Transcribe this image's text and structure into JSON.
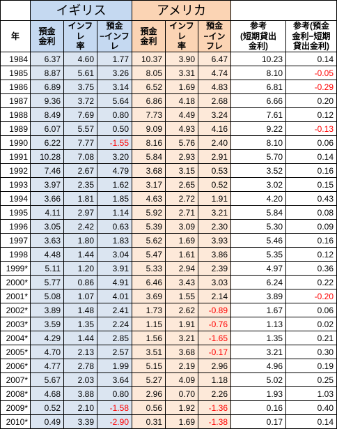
{
  "headers": {
    "uk": "イギリス",
    "us": "アメリカ",
    "year": "年",
    "deposit": "預金\n金利",
    "inflation": "インフレ\n率",
    "diff": "預金\n−インフレ",
    "ref1": "参考\n(短期貸出\n金利)",
    "ref2": "参考(預金\n金利−短期\n貸出金利)"
  },
  "rows": [
    {
      "year": "1984",
      "uk_dep": "6.37",
      "uk_inf": "4.60",
      "uk_diff": "1.77",
      "us_dep": "10.37",
      "us_inf": "3.90",
      "us_diff": "6.47",
      "ref1": "10.23",
      "ref2": "0.14"
    },
    {
      "year": "1985",
      "uk_dep": "8.87",
      "uk_inf": "5.61",
      "uk_diff": "3.26",
      "us_dep": "8.05",
      "us_inf": "3.31",
      "us_diff": "4.74",
      "ref1": "8.10",
      "ref2": "-0.05"
    },
    {
      "year": "1986",
      "uk_dep": "6.89",
      "uk_inf": "3.75",
      "uk_diff": "3.14",
      "us_dep": "6.52",
      "us_inf": "1.69",
      "us_diff": "4.83",
      "ref1": "6.81",
      "ref2": "-0.29"
    },
    {
      "year": "1987",
      "uk_dep": "9.36",
      "uk_inf": "3.72",
      "uk_diff": "5.64",
      "us_dep": "6.86",
      "us_inf": "4.18",
      "us_diff": "2.68",
      "ref1": "6.66",
      "ref2": "0.20"
    },
    {
      "year": "1988",
      "uk_dep": "8.49",
      "uk_inf": "7.69",
      "uk_diff": "0.80",
      "us_dep": "7.73",
      "us_inf": "4.49",
      "us_diff": "3.24",
      "ref1": "7.61",
      "ref2": "0.12"
    },
    {
      "year": "1989",
      "uk_dep": "6.07",
      "uk_inf": "5.57",
      "uk_diff": "0.50",
      "us_dep": "9.09",
      "us_inf": "4.93",
      "us_diff": "4.16",
      "ref1": "9.22",
      "ref2": "-0.13"
    },
    {
      "year": "1990",
      "uk_dep": "6.22",
      "uk_inf": "7.77",
      "uk_diff": "-1.55",
      "us_dep": "8.16",
      "us_inf": "5.76",
      "us_diff": "2.40",
      "ref1": "8.10",
      "ref2": "0.06"
    },
    {
      "year": "1991",
      "uk_dep": "10.28",
      "uk_inf": "7.08",
      "uk_diff": "3.20",
      "us_dep": "5.84",
      "us_inf": "2.93",
      "us_diff": "2.91",
      "ref1": "5.70",
      "ref2": "0.14"
    },
    {
      "year": "1992",
      "uk_dep": "7.46",
      "uk_inf": "2.67",
      "uk_diff": "4.79",
      "us_dep": "3.68",
      "us_inf": "3.15",
      "us_diff": "0.53",
      "ref1": "3.52",
      "ref2": "0.16"
    },
    {
      "year": "1993",
      "uk_dep": "3.97",
      "uk_inf": "2.35",
      "uk_diff": "1.62",
      "us_dep": "3.17",
      "us_inf": "2.65",
      "us_diff": "0.52",
      "ref1": "3.02",
      "ref2": "0.15"
    },
    {
      "year": "1994",
      "uk_dep": "3.66",
      "uk_inf": "1.81",
      "uk_diff": "1.85",
      "us_dep": "4.63",
      "us_inf": "2.72",
      "us_diff": "1.91",
      "ref1": "4.20",
      "ref2": "0.43"
    },
    {
      "year": "1995",
      "uk_dep": "4.11",
      "uk_inf": "2.97",
      "uk_diff": "1.14",
      "us_dep": "5.92",
      "us_inf": "2.71",
      "us_diff": "3.21",
      "ref1": "5.84",
      "ref2": "0.08"
    },
    {
      "year": "1996",
      "uk_dep": "3.05",
      "uk_inf": "2.42",
      "uk_diff": "0.63",
      "us_dep": "5.39",
      "us_inf": "3.09",
      "us_diff": "2.30",
      "ref1": "5.30",
      "ref2": "0.09"
    },
    {
      "year": "1997",
      "uk_dep": "3.63",
      "uk_inf": "1.80",
      "uk_diff": "1.83",
      "us_dep": "5.62",
      "us_inf": "1.69",
      "us_diff": "3.93",
      "ref1": "5.46",
      "ref2": "0.16"
    },
    {
      "year": "1998",
      "uk_dep": "4.48",
      "uk_inf": "1.44",
      "uk_diff": "3.04",
      "us_dep": "5.47",
      "us_inf": "1.61",
      "us_diff": "3.86",
      "ref1": "5.35",
      "ref2": "0.12"
    },
    {
      "year": "1999*",
      "uk_dep": "5.11",
      "uk_inf": "1.20",
      "uk_diff": "3.91",
      "us_dep": "5.33",
      "us_inf": "2.94",
      "us_diff": "2.39",
      "ref1": "4.97",
      "ref2": "0.36"
    },
    {
      "year": "2000*",
      "uk_dep": "5.77",
      "uk_inf": "0.86",
      "uk_diff": "4.91",
      "us_dep": "6.46",
      "us_inf": "3.43",
      "us_diff": "3.03",
      "ref1": "6.24",
      "ref2": "0.22"
    },
    {
      "year": "2001*",
      "uk_dep": "5.08",
      "uk_inf": "1.07",
      "uk_diff": "4.01",
      "us_dep": "3.69",
      "us_inf": "1.55",
      "us_diff": "2.14",
      "ref1": "3.89",
      "ref2": "-0.20"
    },
    {
      "year": "2002*",
      "uk_dep": "3.89",
      "uk_inf": "1.48",
      "uk_diff": "2.41",
      "us_dep": "1.73",
      "us_inf": "2.62",
      "us_diff": "-0.89",
      "ref1": "1.67",
      "ref2": "0.06"
    },
    {
      "year": "2003*",
      "uk_dep": "3.59",
      "uk_inf": "1.35",
      "uk_diff": "2.24",
      "us_dep": "1.15",
      "us_inf": "1.91",
      "us_diff": "-0.76",
      "ref1": "1.13",
      "ref2": "0.02"
    },
    {
      "year": "2004*",
      "uk_dep": "4.29",
      "uk_inf": "1.44",
      "uk_diff": "2.85",
      "us_dep": "1.56",
      "us_inf": "3.21",
      "us_diff": "-1.65",
      "ref1": "1.35",
      "ref2": "0.21"
    },
    {
      "year": "2005*",
      "uk_dep": "4.70",
      "uk_inf": "2.13",
      "uk_diff": "2.57",
      "us_dep": "3.51",
      "us_inf": "3.68",
      "us_diff": "-0.17",
      "ref1": "3.21",
      "ref2": "0.30"
    },
    {
      "year": "2006*",
      "uk_dep": "4.77",
      "uk_inf": "2.78",
      "uk_diff": "1.99",
      "us_dep": "5.15",
      "us_inf": "2.19",
      "us_diff": "2.96",
      "ref1": "4.96",
      "ref2": "0.19"
    },
    {
      "year": "2007*",
      "uk_dep": "5.67",
      "uk_inf": "2.03",
      "uk_diff": "3.64",
      "us_dep": "5.27",
      "us_inf": "4.09",
      "us_diff": "1.18",
      "ref1": "5.02",
      "ref2": "0.25"
    },
    {
      "year": "2008*",
      "uk_dep": "4.68",
      "uk_inf": "3.88",
      "uk_diff": "0.80",
      "us_dep": "2.96",
      "us_inf": "0.70",
      "us_diff": "2.26",
      "ref1": "1.93",
      "ref2": "1.03"
    },
    {
      "year": "2009*",
      "uk_dep": "0.52",
      "uk_inf": "2.10",
      "uk_diff": "-1.58",
      "us_dep": "0.56",
      "us_inf": "1.92",
      "us_diff": "-1.36",
      "ref1": "0.16",
      "ref2": "0.40"
    },
    {
      "year": "2010*",
      "uk_dep": "0.49",
      "uk_inf": "3.39",
      "uk_diff": "-2.90",
      "us_dep": "0.31",
      "us_inf": "1.69",
      "us_diff": "-1.38",
      "ref1": "0.17",
      "ref2": "0.14"
    }
  ],
  "colors": {
    "uk_header": "#c5d9f1",
    "us_header": "#fbd4b4",
    "uk_cell": "#dbe5f1",
    "us_cell": "#fde9d9",
    "negative": "#ff0000"
  }
}
